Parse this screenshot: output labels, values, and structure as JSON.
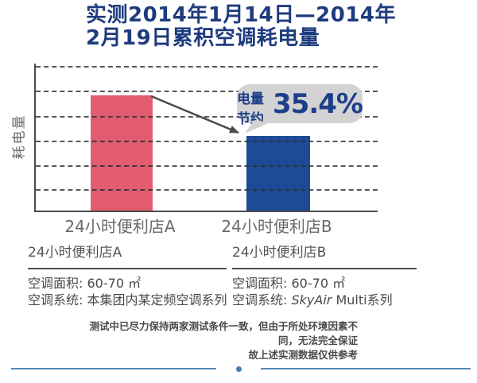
{
  "title": {
    "line1": "实测2014年1月14日—2014年",
    "line2": "2月19日累积空调耗电量"
  },
  "chart_data": {
    "type": "bar",
    "categories": [
      "24小时便利店A",
      "24小时便利店B"
    ],
    "values": [
      100,
      64.6
    ],
    "ylabel": "耗电量",
    "xlabel": "",
    "ylim": [
      0,
      125
    ],
    "grid": "horizontal-dashed",
    "legend": "none",
    "bar_colors": [
      "#e25c70",
      "#1d4b96"
    ],
    "annotation": {
      "label": "电量节约",
      "value": "35.4%"
    }
  },
  "details": [
    {
      "header": "24小时便利店A",
      "area_label": "空调面积:",
      "area_value": "60-70 ㎡",
      "system_label": "空调系统:",
      "system_value": "本集团内某定频空调系列"
    },
    {
      "header": "24小时便利店B",
      "area_label": "空调面积:",
      "area_value": "60-70 ㎡",
      "system_label": "空调系统:",
      "system_brand": "SkyAir",
      "system_value": "Multi系列"
    }
  ],
  "disclaimer": {
    "line1": "测试中已尽力保持两家测试条件一致，但由于所处环境因素不同，无法完全保证",
    "line2": "故上述实测数据仅供参考"
  },
  "colors": {
    "title": "#1e3b7e",
    "bar_a": "#e25c70",
    "bar_b": "#1d4b96",
    "bubble_bg": "#d3d3d3",
    "bubble_text": "#1d3f8a",
    "arrow": "#4a4a4a",
    "divider": "#5a87b8"
  }
}
